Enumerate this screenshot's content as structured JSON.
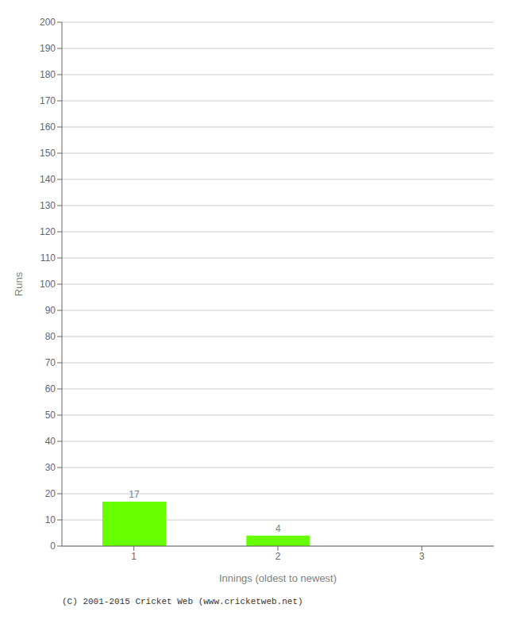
{
  "chart_data": {
    "type": "bar",
    "categories": [
      "1",
      "2",
      "3"
    ],
    "values": [
      17,
      4,
      0
    ],
    "color": "#66ff00",
    "xlabel": "Innings (oldest to newest)",
    "ylabel": "Runs",
    "ylim": [
      0,
      200
    ],
    "yticks": [
      0,
      10,
      20,
      30,
      40,
      50,
      60,
      70,
      80,
      90,
      100,
      110,
      120,
      130,
      140,
      150,
      160,
      170,
      180,
      190,
      200
    ],
    "grid": true,
    "data_labels": true,
    "annotations": [
      "(C) 2001-2015 Cricket Web (www.cricketweb.net)"
    ]
  }
}
